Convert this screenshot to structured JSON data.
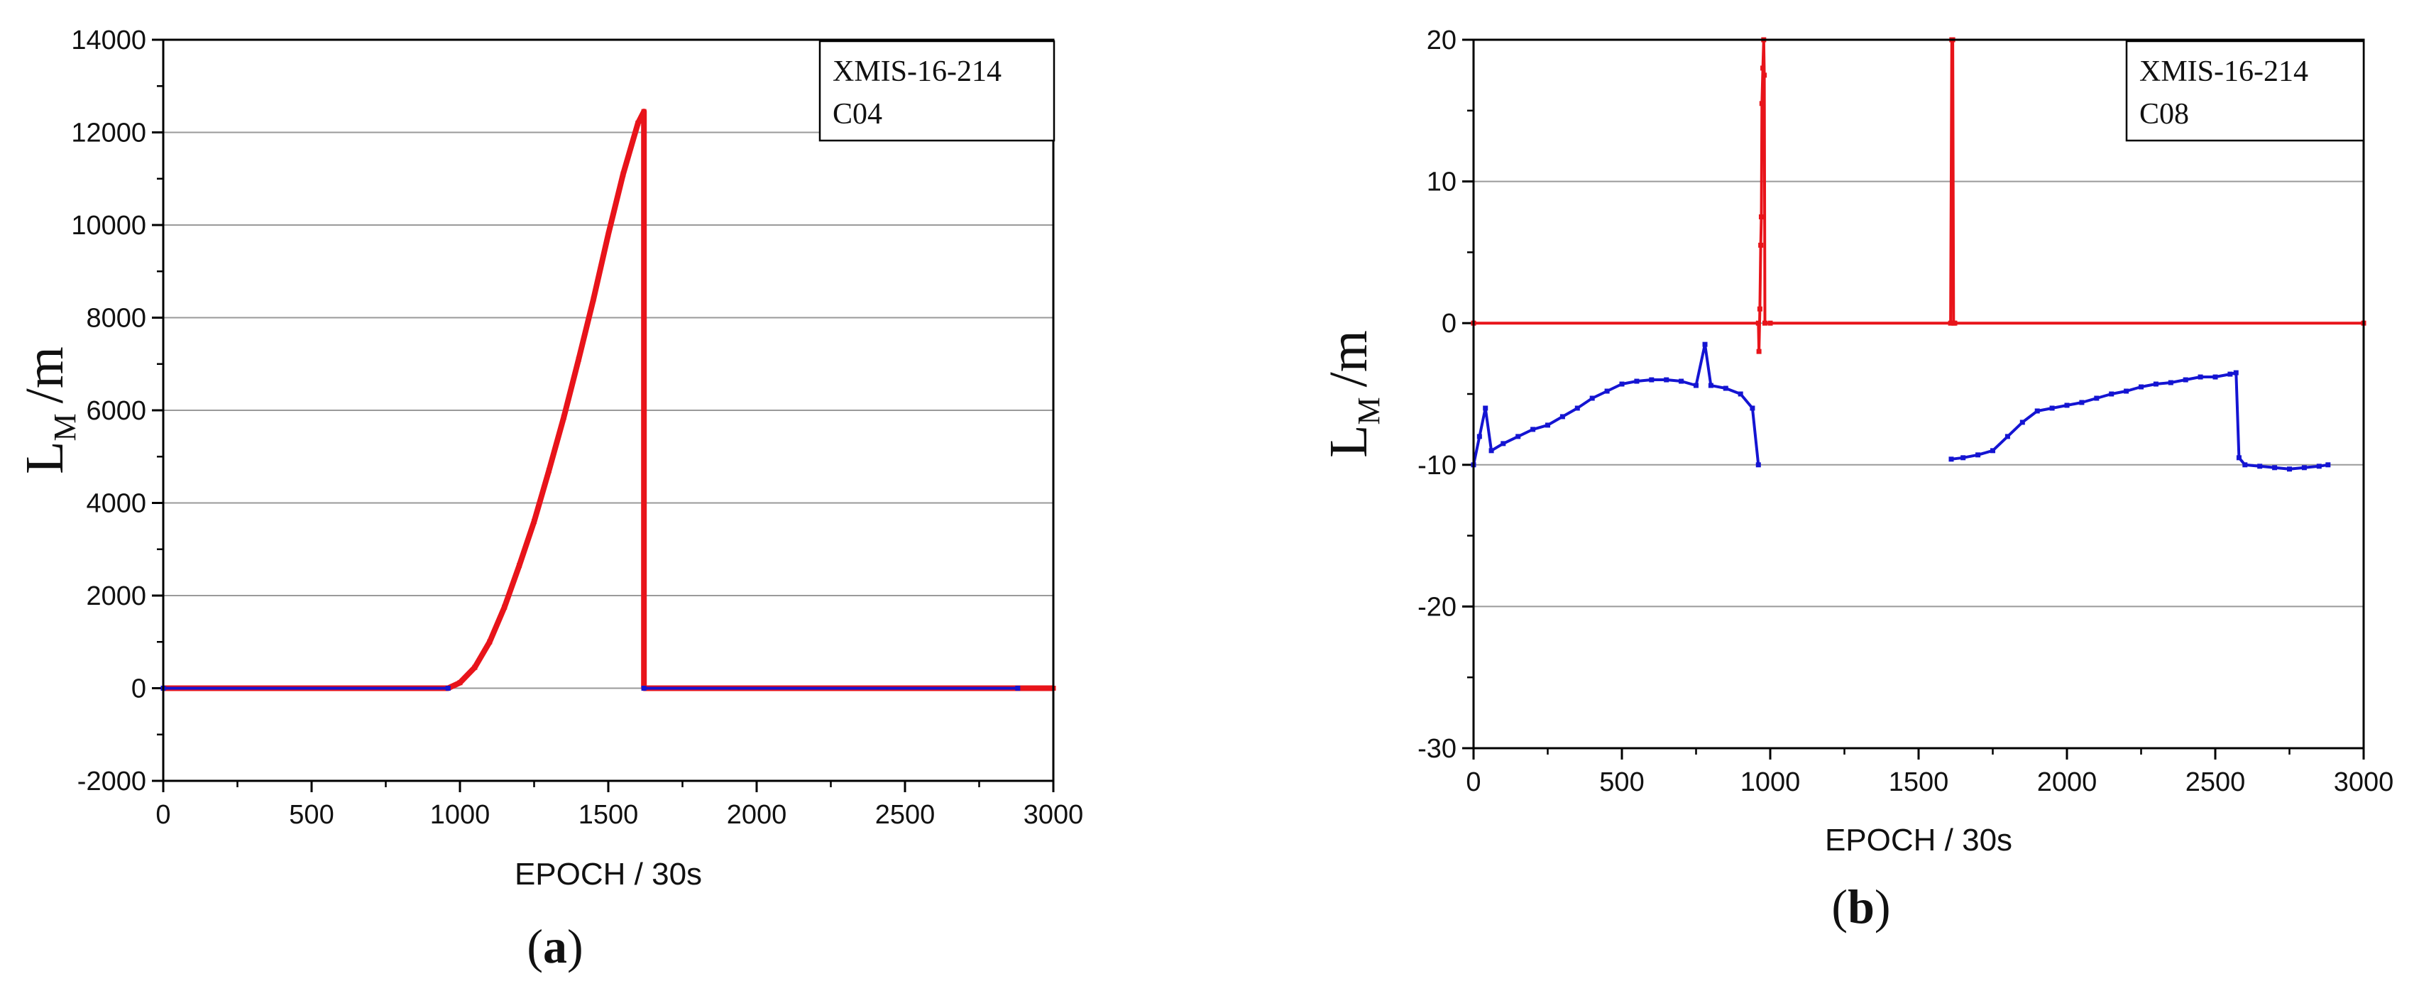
{
  "chart_data": [
    {
      "id": "a",
      "type": "line",
      "panel_label": "(a)",
      "panel_letter": "a",
      "xlabel": "EPOCH / 30s",
      "ylabel_main": "L",
      "ylabel_sub": "M",
      "ylabel_unit": "/m",
      "annotation_lines": [
        "XMIS-16-214",
        "C04"
      ],
      "xlim": [
        0,
        3000
      ],
      "ylim": [
        -2000,
        14000
      ],
      "x_ticks": [
        0,
        500,
        1000,
        1500,
        2000,
        2500,
        3000
      ],
      "y_ticks": [
        -2000,
        0,
        2000,
        4000,
        6000,
        8000,
        10000,
        12000,
        14000
      ],
      "grid": "horizontal",
      "series": [
        {
          "color": "#e8141a",
          "marker": "square",
          "x": [
            0,
            960,
            1000,
            1050,
            1100,
            1150,
            1200,
            1250,
            1300,
            1350,
            1400,
            1450,
            1500,
            1550,
            1600,
            1620,
            1620,
            1620,
            2880,
            2880,
            3000
          ],
          "y": [
            0,
            0,
            120,
            450,
            1000,
            1750,
            2650,
            3600,
            4700,
            5850,
            7100,
            8400,
            9800,
            11100,
            12200,
            12450,
            4900,
            0,
            0,
            0,
            0
          ]
        },
        {
          "color": "#1414d2",
          "marker": "square",
          "x": [
            0,
            960,
            null,
            1620,
            2880
          ],
          "y": [
            0,
            0,
            null,
            0,
            0
          ]
        }
      ]
    },
    {
      "id": "b",
      "type": "line",
      "panel_label": "(b)",
      "panel_letter": "b",
      "xlabel": "EPOCH / 30s",
      "ylabel_main": "L",
      "ylabel_sub": "M",
      "ylabel_unit": "/m",
      "annotation_lines": [
        "XMIS-16-214",
        "C08"
      ],
      "xlim": [
        0,
        3000
      ],
      "ylim": [
        -30,
        20
      ],
      "x_ticks": [
        0,
        500,
        1000,
        1500,
        2000,
        2500,
        3000
      ],
      "y_ticks": [
        -30,
        -20,
        -10,
        0,
        10,
        20
      ],
      "grid": "horizontal",
      "series": [
        {
          "color": "#e8141a",
          "marker": "square",
          "x": [
            0,
            960,
            962,
            965,
            968,
            970,
            972,
            975,
            978,
            980,
            982,
            1000,
            1608,
            1612,
            1615,
            1618,
            1622,
            3000
          ],
          "y": [
            0,
            0,
            -2,
            1,
            5.5,
            7.5,
            15.5,
            18,
            20,
            17.5,
            0,
            0,
            0,
            20,
            20,
            0,
            0,
            0
          ]
        },
        {
          "color": "#1414d2",
          "marker": "square",
          "x": [
            0,
            20,
            40,
            60,
            100,
            150,
            200,
            250,
            300,
            350,
            400,
            450,
            500,
            550,
            600,
            650,
            700,
            750,
            780,
            800,
            850,
            900,
            940,
            960,
            null,
            1610,
            1650,
            1700,
            1750,
            1800,
            1850,
            1900,
            1950,
            2000,
            2050,
            2100,
            2150,
            2200,
            2250,
            2300,
            2350,
            2400,
            2450,
            2500,
            2550,
            2570,
            2580,
            2600,
            2650,
            2700,
            2750,
            2800,
            2850,
            2880
          ],
          "y": [
            -10,
            -8,
            -6,
            -9,
            -8.5,
            -8,
            -7.5,
            -7.2,
            -6.6,
            -6,
            -5.3,
            -4.8,
            -4.3,
            -4.1,
            -4,
            -4,
            -4.1,
            -4.4,
            -1.5,
            -4.4,
            -4.6,
            -5,
            -6,
            -10,
            null,
            -9.6,
            -9.5,
            -9.3,
            -9,
            -8,
            -7,
            -6.2,
            -6,
            -5.8,
            -5.6,
            -5.3,
            -5,
            -4.8,
            -4.5,
            -4.3,
            -4.2,
            -4,
            -3.8,
            -3.8,
            -3.6,
            -3.5,
            -9.5,
            -10,
            -10.1,
            -10.2,
            -10.3,
            -10.2,
            -10.1,
            -10
          ]
        }
      ]
    }
  ]
}
